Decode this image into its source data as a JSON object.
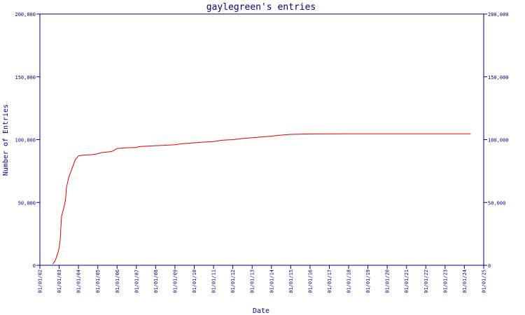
{
  "chart_data": {
    "type": "line",
    "title": "gaylegreen's entries",
    "xlabel": "Date",
    "ylabel": "Number of Entries",
    "ylim": [
      0,
      200000
    ],
    "y_ticks": [
      "0",
      "50,000",
      "100,000",
      "150,000",
      "200,000"
    ],
    "y_tick_values": [
      0,
      50000,
      100000,
      150000,
      200000
    ],
    "x_ticks": [
      "01/01/02",
      "01/01/03",
      "01/01/04",
      "01/01/05",
      "01/01/06",
      "01/01/07",
      "01/01/08",
      "01/01/09",
      "01/01/10",
      "01/01/11",
      "01/01/12",
      "01/01/13",
      "01/01/14",
      "01/01/15",
      "01/01/16",
      "01/01/17",
      "01/01/18",
      "01/01/19",
      "01/01/20",
      "01/01/21",
      "01/01/22",
      "01/01/23",
      "01/01/24",
      "01/01/25"
    ],
    "xlim": [
      "01/01/02",
      "01/01/25"
    ],
    "line_color": "#dd0000",
    "axis_color": "#000080",
    "grid": false,
    "series": [
      {
        "x": [
          "2002-09-01",
          "2002-10-15",
          "2002-11-15",
          "2002-12-15",
          "2003-01-01",
          "2003-01-20",
          "2003-02-15",
          "2003-04-01",
          "2003-05-01",
          "2003-05-20",
          "2003-07-01",
          "2003-09-01",
          "2003-11-01",
          "2004-01-01",
          "2004-03-01",
          "2004-06-01",
          "2004-09-01",
          "2004-12-01",
          "2005-03-01",
          "2005-06-01",
          "2005-09-01",
          "2005-10-15",
          "2006-01-01",
          "2006-06-01",
          "2007-01-01",
          "2007-03-01",
          "2008-01-01",
          "2008-06-01",
          "2009-01-01",
          "2009-06-01",
          "2010-01-01",
          "2010-06-01",
          "2011-01-01",
          "2011-06-01",
          "2012-01-01",
          "2012-06-01",
          "2013-01-01",
          "2013-06-01",
          "2014-01-01",
          "2014-06-01",
          "2015-01-01",
          "2016-01-01",
          "2017-01-01",
          "2018-01-01",
          "2019-01-01",
          "2020-01-01",
          "2021-01-01",
          "2022-01-01",
          "2023-01-01",
          "2024-01-01",
          "2024-05-01"
        ],
        "y": [
          1000,
          3500,
          7000,
          11000,
          14000,
          20000,
          39000,
          46000,
          52000,
          62000,
          70000,
          77000,
          84000,
          87000,
          87500,
          87800,
          88000,
          88500,
          89500,
          90000,
          90500,
          91000,
          93000,
          93500,
          93800,
          94500,
          95200,
          95500,
          96000,
          96800,
          97500,
          98000,
          98500,
          99500,
          100000,
          100800,
          101500,
          102000,
          102800,
          103500,
          104200,
          104500,
          104600,
          104700,
          104700,
          104700,
          104700,
          104700,
          104700,
          104700,
          104700
        ]
      }
    ]
  }
}
